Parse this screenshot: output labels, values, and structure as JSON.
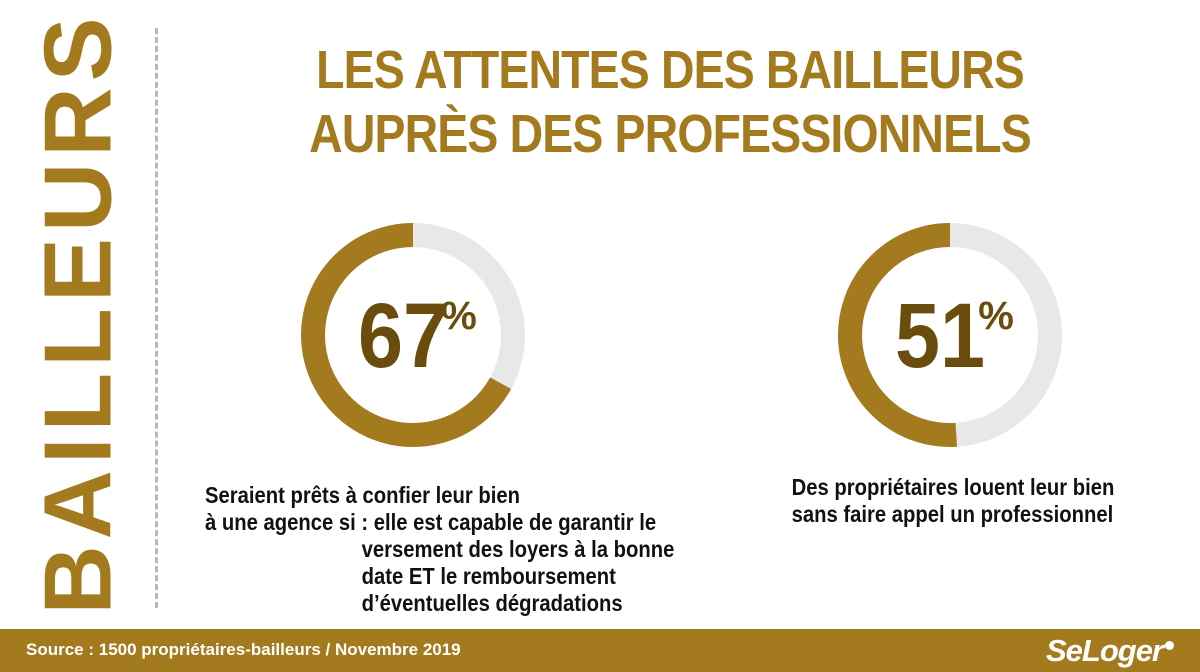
{
  "side_title": "BAILLEURS",
  "title": {
    "line1": "LES ATTENTES DES BAILLEURS",
    "line2": "AUPRÈS DES PROFESSIONNELS"
  },
  "colors": {
    "accent": "#a37a1e",
    "track": "#e8e8e8",
    "percent_text": "#6a4c0d",
    "caption_text": "#111111"
  },
  "chart_data": [
    {
      "type": "pie",
      "style": "donut",
      "value": 67,
      "total": 100,
      "label": "67",
      "unit": "%",
      "caption": {
        "line1": "Seraient prêts à confier leur bien",
        "line2_prefix": "à une agence si :",
        "line2_rest": "elle est capable de garantir le",
        "line3": "versement des loyers à la bonne",
        "line4": "date ET le remboursement",
        "line5": "d’éventuelles dégradations"
      }
    },
    {
      "type": "pie",
      "style": "donut",
      "value": 51,
      "total": 100,
      "label": "51",
      "unit": "%",
      "caption": {
        "line1": "Des propriétaires louent leur bien",
        "line2": "sans faire appel un professionnel"
      }
    }
  ],
  "footer": {
    "source": "Source : 1500 propriétaires-bailleurs / Novembre 2019",
    "logo": "SeLoger"
  }
}
